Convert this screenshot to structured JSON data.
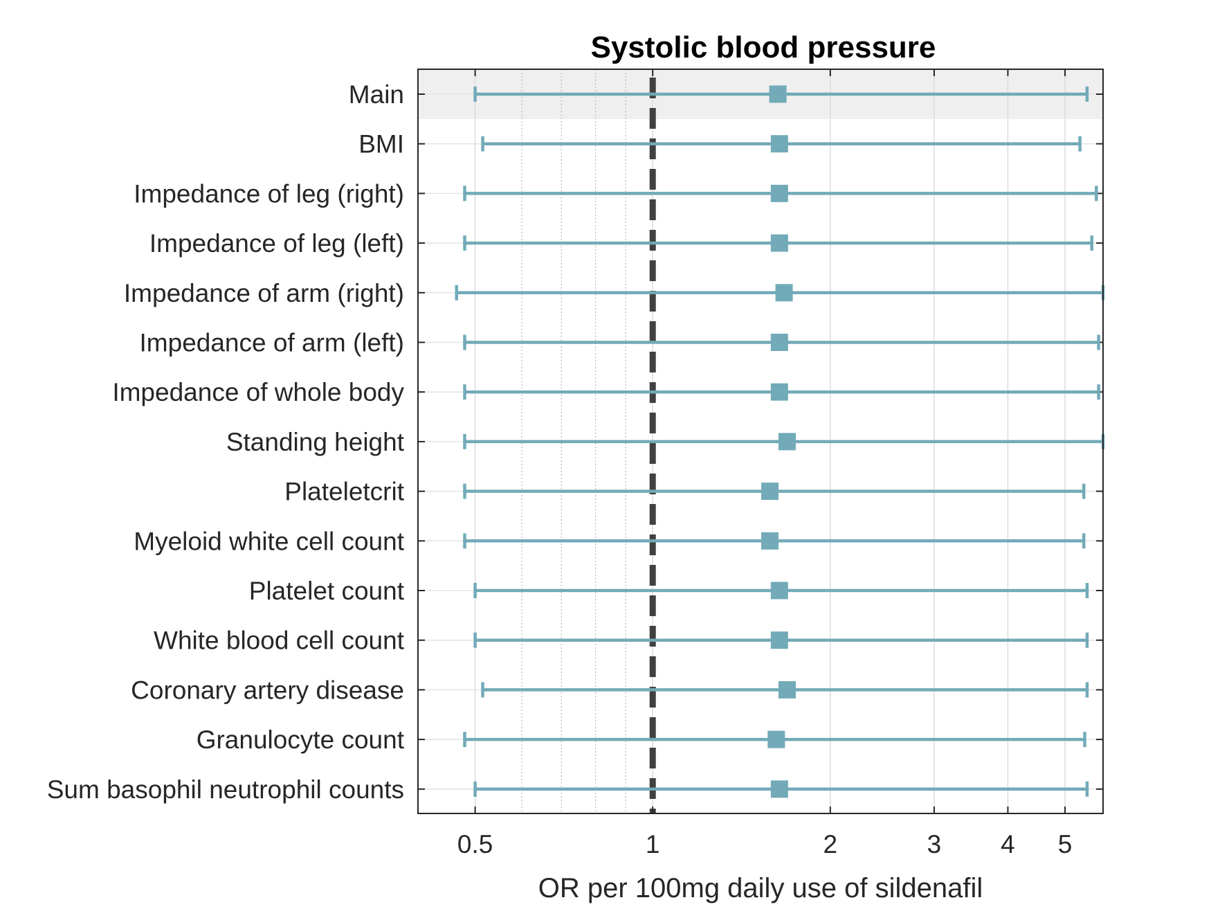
{
  "chart_data": {
    "type": "forest",
    "title": "Systolic blood pressure",
    "xlabel": "OR per 100mg daily use of sildenafil",
    "xscale": "log",
    "xlim": [
      0.4,
      5.8
    ],
    "xticks": [
      {
        "value": 0.5,
        "label": "0.5"
      },
      {
        "value": 1,
        "label": "1"
      },
      {
        "value": 2,
        "label": "2"
      },
      {
        "value": 3,
        "label": "3"
      },
      {
        "value": 4,
        "label": "4"
      },
      {
        "value": 5,
        "label": "5"
      }
    ],
    "minor_gridlines": [
      0.6,
      0.7,
      0.8,
      0.9
    ],
    "reference_line": 1,
    "highlighted_row": "Main",
    "grid": true,
    "colors": {
      "marker": "#72aab8",
      "reference": "#404040",
      "highlight_band": "#efefef",
      "axis": "#262626"
    },
    "rows": [
      {
        "label": "Main",
        "or": 1.63,
        "lower": 0.5,
        "upper": 5.45
      },
      {
        "label": "BMI",
        "or": 1.64,
        "lower": 0.515,
        "upper": 5.3
      },
      {
        "label": "Impedance of leg (right)",
        "or": 1.64,
        "lower": 0.48,
        "upper": 5.65
      },
      {
        "label": "Impedance of leg (left)",
        "or": 1.64,
        "lower": 0.48,
        "upper": 5.55
      },
      {
        "label": "Impedance of arm (right)",
        "or": 1.67,
        "lower": 0.465,
        "upper": 5.85
      },
      {
        "label": "Impedance of arm (left)",
        "or": 1.64,
        "lower": 0.48,
        "upper": 5.7
      },
      {
        "label": "Impedance of whole body",
        "or": 1.64,
        "lower": 0.48,
        "upper": 5.7
      },
      {
        "label": "Standing height",
        "or": 1.69,
        "lower": 0.48,
        "upper": 5.85
      },
      {
        "label": "Plateletcrit",
        "or": 1.58,
        "lower": 0.48,
        "upper": 5.38
      },
      {
        "label": "Myeloid white cell count",
        "or": 1.58,
        "lower": 0.48,
        "upper": 5.38
      },
      {
        "label": "Platelet count",
        "or": 1.64,
        "lower": 0.5,
        "upper": 5.45
      },
      {
        "label": "White blood cell count",
        "or": 1.64,
        "lower": 0.5,
        "upper": 5.45
      },
      {
        "label": "Coronary artery disease",
        "or": 1.69,
        "lower": 0.515,
        "upper": 5.45
      },
      {
        "label": "Granulocyte count",
        "or": 1.62,
        "lower": 0.48,
        "upper": 5.4
      },
      {
        "label": "Sum basophil neutrophil counts",
        "or": 1.64,
        "lower": 0.5,
        "upper": 5.45
      }
    ]
  }
}
